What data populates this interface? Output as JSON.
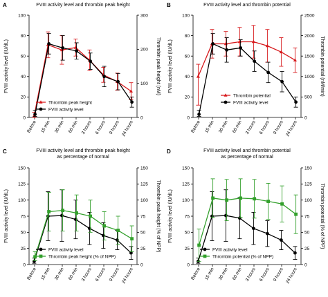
{
  "chart_data": [
    {
      "panel": "A",
      "type": "line",
      "title": "FVIII activity level and thrombin peak height",
      "ylabel": "FVIII activity level (IU/dL)",
      "y2label": "Thrombin peak height (nM)",
      "ylim": [
        0,
        100
      ],
      "yticks": [
        0,
        20,
        40,
        60,
        80,
        100
      ],
      "y2lim": [
        0,
        300
      ],
      "y2ticks": [
        0,
        100,
        200,
        300
      ],
      "categories": [
        "Before",
        "15 min",
        "30 min",
        "60 min",
        "3 hours",
        "6 hours",
        "9 hours",
        "24 hours"
      ],
      "legend_position": "bottom-left",
      "series": [
        {
          "name": "Thrombin peak height",
          "color": "#d7191c",
          "marker": "triangle",
          "axis": "right",
          "values": [
            5,
            213,
            198,
            205,
            168,
            125,
            105,
            77
          ],
          "err_plus": [
            10,
            38,
            42,
            25,
            30,
            22,
            25,
            25
          ],
          "err_minus": [
            5,
            38,
            42,
            25,
            30,
            22,
            25,
            25
          ]
        },
        {
          "name": "FVIII activity level",
          "color": "#000000",
          "marker": "circle",
          "axis": "left",
          "values": [
            3,
            72,
            68,
            65,
            55,
            40,
            35,
            15
          ],
          "err_plus": [
            4,
            10,
            12,
            8,
            8,
            10,
            8,
            5
          ],
          "err_minus": [
            2,
            10,
            12,
            8,
            8,
            10,
            8,
            5
          ]
        }
      ]
    },
    {
      "panel": "B",
      "type": "line",
      "title": "FVIII activity level and thrombin potential",
      "ylabel": "FVIII activity level (IU/dL)",
      "y2label": "Thrombin potential (nM/min)",
      "ylim": [
        0,
        100
      ],
      "yticks": [
        0,
        20,
        40,
        60,
        80,
        100
      ],
      "y2lim": [
        0,
        2500
      ],
      "y2ticks": [
        0,
        500,
        1000,
        1500,
        2000,
        2500
      ],
      "categories": [
        "Before",
        "15 min",
        "30 min",
        "60 min",
        "3 hours",
        "6 hours",
        "9 hours",
        "24 hours"
      ],
      "legend_position": "bottom-center",
      "series": [
        {
          "name": "Thrombin potential",
          "color": "#d7191c",
          "marker": "triangle",
          "axis": "right",
          "values": [
            1000,
            1800,
            1800,
            1850,
            1850,
            1750,
            1600,
            1400
          ],
          "err_plus": [
            300,
            350,
            300,
            350,
            400,
            400,
            350,
            300
          ],
          "err_minus": [
            700,
            350,
            300,
            350,
            400,
            400,
            350,
            300
          ]
        },
        {
          "name": "FVIII activity level",
          "color": "#000000",
          "marker": "circle",
          "axis": "left",
          "values": [
            3,
            72,
            66,
            68,
            55,
            44,
            35,
            15
          ],
          "err_plus": [
            4,
            10,
            12,
            8,
            10,
            10,
            10,
            5
          ],
          "err_minus": [
            2,
            10,
            12,
            8,
            10,
            10,
            10,
            5
          ]
        }
      ]
    },
    {
      "panel": "C",
      "type": "line",
      "title": "FVIII activity level and thrombin peak height",
      "subtitle": "as percentage of normal",
      "ylabel": "FVIII activity level (IU/dL)",
      "y2label": "Thrombin peak height (% of NPP)",
      "ylim": [
        0,
        150
      ],
      "yticks": [
        0,
        25,
        50,
        75,
        100,
        125,
        150
      ],
      "y2lim": [
        0,
        150
      ],
      "y2ticks": [
        0,
        25,
        50,
        75,
        100,
        125,
        150
      ],
      "categories": [
        "Before",
        "15 min",
        "30 min",
        "60 min",
        "3 hours",
        "6 hours",
        "9 hours",
        "24 hours"
      ],
      "legend_position": "bottom-left",
      "series": [
        {
          "name": "FVIII activity level",
          "color": "#000000",
          "marker": "circle",
          "axis": "left",
          "values": [
            5,
            75,
            76,
            70,
            56,
            45,
            38,
            18
          ],
          "err_plus": [
            5,
            38,
            40,
            30,
            25,
            20,
            15,
            10
          ],
          "err_minus": [
            3,
            38,
            40,
            30,
            25,
            20,
            15,
            10
          ]
        },
        {
          "name": "Thrombin peak height (% of NPP)",
          "color": "#33a02c",
          "marker": "square",
          "axis": "right",
          "values": [
            12,
            82,
            84,
            80,
            75,
            60,
            53,
            40
          ],
          "err_plus": [
            8,
            30,
            32,
            28,
            25,
            22,
            22,
            20
          ],
          "err_minus": [
            6,
            30,
            32,
            28,
            25,
            22,
            22,
            20
          ]
        }
      ]
    },
    {
      "panel": "D",
      "type": "line",
      "title": "FVIII activity level and thrombin potential",
      "subtitle": "as percentage of normal",
      "ylabel": "FVIII activity level (IU/dL)",
      "y2label": "Thrombin potential (% of NPP)",
      "ylim": [
        0,
        150
      ],
      "yticks": [
        0,
        25,
        50,
        75,
        100,
        125,
        150
      ],
      "y2lim": [
        0,
        150
      ],
      "y2ticks": [
        0,
        25,
        50,
        75,
        100,
        125,
        150
      ],
      "categories": [
        "Before",
        "15 min",
        "30 min",
        "60 min",
        "3 hours",
        "6 hours",
        "9 hours",
        "24 hours"
      ],
      "legend_position": "bottom-left",
      "series": [
        {
          "name": "FVIII activity level",
          "color": "#000000",
          "marker": "circle",
          "axis": "left",
          "values": [
            5,
            75,
            76,
            72,
            56,
            48,
            38,
            18
          ],
          "err_plus": [
            5,
            38,
            40,
            32,
            25,
            20,
            15,
            10
          ],
          "err_minus": [
            3,
            38,
            40,
            32,
            25,
            20,
            15,
            10
          ]
        },
        {
          "name": "Thrombin potential (% of NPP)",
          "color": "#33a02c",
          "marker": "square",
          "axis": "right",
          "values": [
            30,
            103,
            100,
            103,
            102,
            98,
            94,
            78
          ],
          "err_plus": [
            25,
            30,
            32,
            30,
            30,
            28,
            28,
            30
          ],
          "err_minus": [
            25,
            30,
            32,
            30,
            30,
            28,
            28,
            30
          ]
        }
      ]
    }
  ]
}
